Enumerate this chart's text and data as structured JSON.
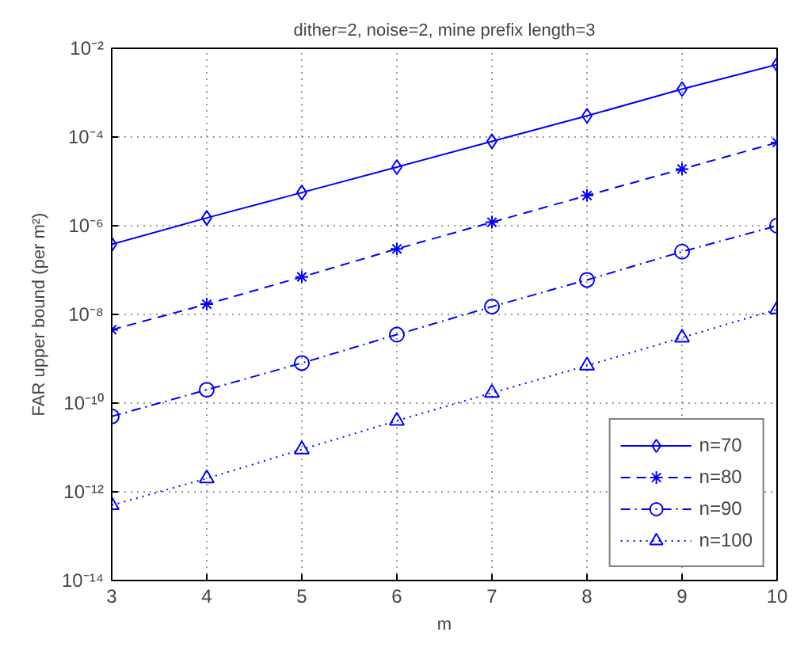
{
  "chart_data": {
    "type": "line",
    "title": "dither=2, noise=2, mine prefix length=3",
    "xlabel": "m",
    "ylabel": "FAR upper bound (per m²)",
    "x": [
      3,
      4,
      5,
      6,
      7,
      8,
      9,
      10
    ],
    "series": [
      {
        "name": "n=70",
        "color": "#0000ff",
        "marker": "diamond",
        "line_style": "solid",
        "values": [
          3.8e-07,
          1.5e-06,
          5.6e-06,
          2.1e-05,
          8e-05,
          0.0003,
          0.0012,
          0.0043
        ]
      },
      {
        "name": "n=80",
        "color": "#0000ff",
        "marker": "cross",
        "line_style": "dashed",
        "values": [
          4.5e-09,
          1.7e-08,
          7e-08,
          3e-07,
          1.2e-06,
          4.8e-06,
          1.9e-05,
          7.5e-05
        ]
      },
      {
        "name": "n=90",
        "color": "#0000ff",
        "marker": "circle",
        "line_style": "dashdot",
        "values": [
          5e-11,
          2e-10,
          8e-10,
          3.5e-09,
          1.5e-08,
          6e-08,
          2.6e-07,
          1e-06
        ]
      },
      {
        "name": "n=100",
        "color": "#0000ff",
        "marker": "triangle",
        "line_style": "dotted",
        "values": [
          5e-13,
          2e-12,
          9e-12,
          4e-11,
          1.7e-10,
          7e-10,
          3e-09,
          1.3e-08
        ]
      }
    ],
    "log": "y",
    "xlim": [
      3,
      10
    ],
    "ylim": [
      1e-14,
      0.01
    ],
    "xticks": [
      3,
      4,
      5,
      6,
      7,
      8,
      9,
      10
    ],
    "yticks": [
      {
        "value": 1e-14,
        "label": "10⁻¹⁴"
      },
      {
        "value": 1e-12,
        "label": "10⁻¹²"
      },
      {
        "value": 1e-10,
        "label": "10⁻¹⁰"
      },
      {
        "value": 1e-08,
        "label": "10⁻⁸"
      },
      {
        "value": 1e-06,
        "label": "10⁻⁶"
      },
      {
        "value": 0.0001,
        "label": "10⁻⁴"
      },
      {
        "value": 0.01,
        "label": "10⁻²"
      }
    ],
    "grid": true,
    "legend": "bottom right"
  }
}
